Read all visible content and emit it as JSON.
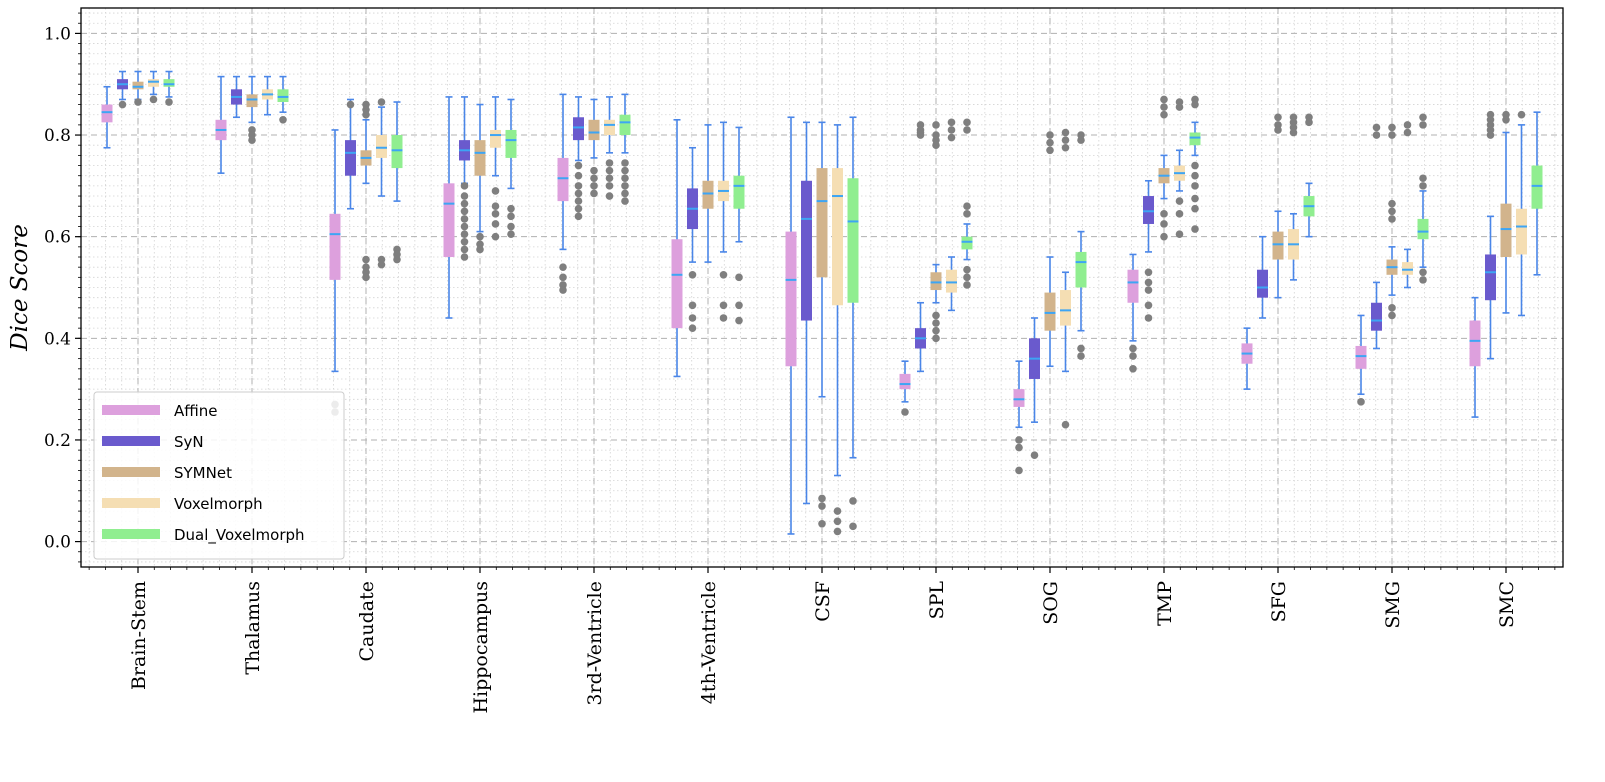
{
  "chart_data": {
    "type": "box",
    "ylabel": "Dice Score",
    "xlabel": "",
    "ylim": [
      -0.05,
      1.05
    ],
    "yticks": [
      0.0,
      0.2,
      0.4,
      0.6,
      0.8,
      1.0
    ],
    "ytick_labels": [
      "0.0",
      "0.2",
      "0.4",
      "0.6",
      "0.8",
      "1.0"
    ],
    "grid": true,
    "legend_position": "lower-left",
    "categories": [
      "Brain-Stem",
      "Thalamus",
      "Caudate",
      "Hippocampus",
      "3rd-Ventricle",
      "4th-Ventricle",
      "CSF",
      "SPL",
      "SOG",
      "TMP",
      "SFG",
      "SMG",
      "SMC"
    ],
    "whisker_color": "#4a86e8",
    "median_color": "#3da5f4",
    "outlier_color": "#7f7f7f",
    "series": [
      {
        "name": "Affine",
        "color": "#dda0dd",
        "boxes": [
          {
            "q1": 0.825,
            "median": 0.845,
            "q3": 0.86,
            "wlo": 0.775,
            "whi": 0.895,
            "outliers": []
          },
          {
            "q1": 0.79,
            "median": 0.81,
            "q3": 0.83,
            "wlo": 0.725,
            "whi": 0.915,
            "outliers": []
          },
          {
            "q1": 0.515,
            "median": 0.605,
            "q3": 0.645,
            "wlo": 0.335,
            "whi": 0.81,
            "outliers": [
              0.27,
              0.255
            ]
          },
          {
            "q1": 0.56,
            "median": 0.665,
            "q3": 0.705,
            "wlo": 0.44,
            "whi": 0.875,
            "outliers": []
          },
          {
            "q1": 0.67,
            "median": 0.715,
            "q3": 0.755,
            "wlo": 0.575,
            "whi": 0.88,
            "outliers": [
              0.54,
              0.52,
              0.505,
              0.495
            ]
          },
          {
            "q1": 0.42,
            "median": 0.525,
            "q3": 0.595,
            "wlo": 0.325,
            "whi": 0.83,
            "outliers": []
          },
          {
            "q1": 0.345,
            "median": 0.515,
            "q3": 0.61,
            "wlo": 0.015,
            "whi": 0.835,
            "outliers": []
          },
          {
            "q1": 0.3,
            "median": 0.31,
            "q3": 0.33,
            "wlo": 0.275,
            "whi": 0.355,
            "outliers": [
              0.255
            ]
          },
          {
            "q1": 0.265,
            "median": 0.28,
            "q3": 0.3,
            "wlo": 0.225,
            "whi": 0.355,
            "outliers": [
              0.2,
              0.185,
              0.14
            ]
          },
          {
            "q1": 0.47,
            "median": 0.51,
            "q3": 0.535,
            "wlo": 0.395,
            "whi": 0.565,
            "outliers": [
              0.38,
              0.365,
              0.34
            ]
          },
          {
            "q1": 0.35,
            "median": 0.37,
            "q3": 0.39,
            "wlo": 0.3,
            "whi": 0.42,
            "outliers": []
          },
          {
            "q1": 0.34,
            "median": 0.365,
            "q3": 0.385,
            "wlo": 0.29,
            "whi": 0.445,
            "outliers": [
              0.275
            ]
          },
          {
            "q1": 0.345,
            "median": 0.395,
            "q3": 0.435,
            "wlo": 0.245,
            "whi": 0.48,
            "outliers": []
          }
        ]
      },
      {
        "name": "SyN",
        "color": "#6a5acd",
        "boxes": [
          {
            "q1": 0.89,
            "median": 0.9,
            "q3": 0.91,
            "wlo": 0.87,
            "whi": 0.925,
            "outliers": [
              0.86
            ]
          },
          {
            "q1": 0.86,
            "median": 0.875,
            "q3": 0.89,
            "wlo": 0.835,
            "whi": 0.915,
            "outliers": []
          },
          {
            "q1": 0.72,
            "median": 0.765,
            "q3": 0.79,
            "wlo": 0.655,
            "whi": 0.87,
            "outliers": [
              0.86
            ]
          },
          {
            "q1": 0.75,
            "median": 0.77,
            "q3": 0.79,
            "wlo": 0.705,
            "whi": 0.875,
            "outliers": [
              0.7,
              0.68,
              0.665,
              0.65,
              0.635,
              0.62,
              0.605,
              0.59,
              0.575,
              0.56
            ]
          },
          {
            "q1": 0.79,
            "median": 0.815,
            "q3": 0.835,
            "wlo": 0.75,
            "whi": 0.875,
            "outliers": [
              0.74,
              0.72,
              0.7,
              0.685,
              0.67,
              0.655,
              0.64
            ]
          },
          {
            "q1": 0.615,
            "median": 0.655,
            "q3": 0.695,
            "wlo": 0.55,
            "whi": 0.775,
            "outliers": [
              0.525,
              0.465,
              0.44,
              0.42
            ]
          },
          {
            "q1": 0.435,
            "median": 0.635,
            "q3": 0.71,
            "wlo": 0.075,
            "whi": 0.825,
            "outliers": []
          },
          {
            "q1": 0.38,
            "median": 0.4,
            "q3": 0.42,
            "wlo": 0.335,
            "whi": 0.47,
            "outliers": [
              0.82,
              0.81,
              0.805,
              0.8
            ]
          },
          {
            "q1": 0.32,
            "median": 0.36,
            "q3": 0.4,
            "wlo": 0.235,
            "whi": 0.44,
            "outliers": [
              0.17
            ]
          },
          {
            "q1": 0.625,
            "median": 0.65,
            "q3": 0.68,
            "wlo": 0.57,
            "whi": 0.71,
            "outliers": [
              0.53,
              0.51,
              0.495,
              0.465,
              0.44
            ]
          },
          {
            "q1": 0.48,
            "median": 0.5,
            "q3": 0.535,
            "wlo": 0.44,
            "whi": 0.6,
            "outliers": []
          },
          {
            "q1": 0.415,
            "median": 0.435,
            "q3": 0.47,
            "wlo": 0.38,
            "whi": 0.51,
            "outliers": [
              0.815,
              0.8
            ]
          },
          {
            "q1": 0.475,
            "median": 0.53,
            "q3": 0.565,
            "wlo": 0.36,
            "whi": 0.64,
            "outliers": [
              0.84,
              0.83,
              0.82,
              0.81,
              0.8
            ]
          }
        ]
      },
      {
        "name": "SYMNet",
        "color": "#d2b48c",
        "boxes": [
          {
            "q1": 0.89,
            "median": 0.895,
            "q3": 0.905,
            "wlo": 0.87,
            "whi": 0.925,
            "outliers": [
              0.865
            ]
          },
          {
            "q1": 0.855,
            "median": 0.87,
            "q3": 0.88,
            "wlo": 0.825,
            "whi": 0.915,
            "outliers": [
              0.81,
              0.8,
              0.79
            ]
          },
          {
            "q1": 0.74,
            "median": 0.755,
            "q3": 0.77,
            "wlo": 0.705,
            "whi": 0.83,
            "outliers": [
              0.86,
              0.85,
              0.84,
              0.555,
              0.54,
              0.53,
              0.52
            ]
          },
          {
            "q1": 0.72,
            "median": 0.765,
            "q3": 0.79,
            "wlo": 0.61,
            "whi": 0.86,
            "outliers": [
              0.6,
              0.585,
              0.575
            ]
          },
          {
            "q1": 0.79,
            "median": 0.805,
            "q3": 0.83,
            "wlo": 0.755,
            "whi": 0.87,
            "outliers": [
              0.73,
              0.715,
              0.7,
              0.685
            ]
          },
          {
            "q1": 0.655,
            "median": 0.685,
            "q3": 0.71,
            "wlo": 0.55,
            "whi": 0.82,
            "outliers": []
          },
          {
            "q1": 0.52,
            "median": 0.67,
            "q3": 0.735,
            "wlo": 0.285,
            "whi": 0.825,
            "outliers": [
              0.085,
              0.07,
              0.035
            ]
          },
          {
            "q1": 0.495,
            "median": 0.51,
            "q3": 0.53,
            "wlo": 0.47,
            "whi": 0.545,
            "outliers": [
              0.82,
              0.8,
              0.79,
              0.78,
              0.445,
              0.43,
              0.415,
              0.4
            ]
          },
          {
            "q1": 0.415,
            "median": 0.45,
            "q3": 0.49,
            "wlo": 0.345,
            "whi": 0.56,
            "outliers": [
              0.8,
              0.785,
              0.77
            ]
          },
          {
            "q1": 0.705,
            "median": 0.72,
            "q3": 0.735,
            "wlo": 0.675,
            "whi": 0.76,
            "outliers": [
              0.87,
              0.855,
              0.84,
              0.645,
              0.625,
              0.6
            ]
          },
          {
            "q1": 0.555,
            "median": 0.585,
            "q3": 0.61,
            "wlo": 0.48,
            "whi": 0.65,
            "outliers": [
              0.835,
              0.82,
              0.81
            ]
          },
          {
            "q1": 0.525,
            "median": 0.54,
            "q3": 0.555,
            "wlo": 0.485,
            "whi": 0.58,
            "outliers": [
              0.815,
              0.8,
              0.665,
              0.65,
              0.635,
              0.46,
              0.445
            ]
          },
          {
            "q1": 0.56,
            "median": 0.615,
            "q3": 0.665,
            "wlo": 0.45,
            "whi": 0.805,
            "outliers": [
              0.84,
              0.83
            ]
          }
        ]
      },
      {
        "name": "Voxelmorph",
        "color": "#f5deb3",
        "boxes": [
          {
            "q1": 0.895,
            "median": 0.905,
            "q3": 0.91,
            "wlo": 0.88,
            "whi": 0.925,
            "outliers": [
              0.87
            ]
          },
          {
            "q1": 0.87,
            "median": 0.88,
            "q3": 0.89,
            "wlo": 0.84,
            "whi": 0.915,
            "outliers": []
          },
          {
            "q1": 0.755,
            "median": 0.775,
            "q3": 0.8,
            "wlo": 0.68,
            "whi": 0.855,
            "outliers": [
              0.865,
              0.555,
              0.545
            ]
          },
          {
            "q1": 0.775,
            "median": 0.8,
            "q3": 0.81,
            "wlo": 0.72,
            "whi": 0.875,
            "outliers": [
              0.69,
              0.66,
              0.645,
              0.625,
              0.6
            ]
          },
          {
            "q1": 0.8,
            "median": 0.82,
            "q3": 0.83,
            "wlo": 0.765,
            "whi": 0.875,
            "outliers": [
              0.745,
              0.73,
              0.715,
              0.7,
              0.68
            ]
          },
          {
            "q1": 0.67,
            "median": 0.69,
            "q3": 0.71,
            "wlo": 0.57,
            "whi": 0.825,
            "outliers": [
              0.525,
              0.465,
              0.44
            ]
          },
          {
            "q1": 0.465,
            "median": 0.68,
            "q3": 0.735,
            "wlo": 0.13,
            "whi": 0.82,
            "outliers": [
              0.06,
              0.04,
              0.02
            ]
          },
          {
            "q1": 0.49,
            "median": 0.51,
            "q3": 0.535,
            "wlo": 0.455,
            "whi": 0.56,
            "outliers": [
              0.825,
              0.81,
              0.795
            ]
          },
          {
            "q1": 0.425,
            "median": 0.455,
            "q3": 0.495,
            "wlo": 0.335,
            "whi": 0.53,
            "outliers": [
              0.805,
              0.79,
              0.775,
              0.23
            ]
          },
          {
            "q1": 0.71,
            "median": 0.725,
            "q3": 0.74,
            "wlo": 0.69,
            "whi": 0.77,
            "outliers": [
              0.865,
              0.855,
              0.67,
              0.645,
              0.605
            ]
          },
          {
            "q1": 0.555,
            "median": 0.585,
            "q3": 0.615,
            "wlo": 0.515,
            "whi": 0.645,
            "outliers": [
              0.835,
              0.825,
              0.815,
              0.805
            ]
          },
          {
            "q1": 0.525,
            "median": 0.535,
            "q3": 0.55,
            "wlo": 0.5,
            "whi": 0.575,
            "outliers": [
              0.82,
              0.805
            ]
          },
          {
            "q1": 0.565,
            "median": 0.62,
            "q3": 0.655,
            "wlo": 0.445,
            "whi": 0.82,
            "outliers": [
              0.84
            ]
          }
        ]
      },
      {
        "name": "Dual_Voxelmorph",
        "color": "#90ee90",
        "boxes": [
          {
            "q1": 0.895,
            "median": 0.9,
            "q3": 0.91,
            "wlo": 0.875,
            "whi": 0.925,
            "outliers": [
              0.865
            ]
          },
          {
            "q1": 0.865,
            "median": 0.875,
            "q3": 0.89,
            "wlo": 0.845,
            "whi": 0.915,
            "outliers": [
              0.83
            ]
          },
          {
            "q1": 0.735,
            "median": 0.77,
            "q3": 0.8,
            "wlo": 0.67,
            "whi": 0.865,
            "outliers": [
              0.575,
              0.565,
              0.555
            ]
          },
          {
            "q1": 0.755,
            "median": 0.79,
            "q3": 0.81,
            "wlo": 0.695,
            "whi": 0.87,
            "outliers": [
              0.655,
              0.64,
              0.62,
              0.605
            ]
          },
          {
            "q1": 0.8,
            "median": 0.825,
            "q3": 0.84,
            "wlo": 0.765,
            "whi": 0.88,
            "outliers": [
              0.745,
              0.73,
              0.715,
              0.7,
              0.685,
              0.67
            ]
          },
          {
            "q1": 0.655,
            "median": 0.7,
            "q3": 0.72,
            "wlo": 0.59,
            "whi": 0.815,
            "outliers": [
              0.52,
              0.465,
              0.435
            ]
          },
          {
            "q1": 0.47,
            "median": 0.63,
            "q3": 0.715,
            "wlo": 0.165,
            "whi": 0.835,
            "outliers": [
              0.08,
              0.03
            ]
          },
          {
            "q1": 0.575,
            "median": 0.59,
            "q3": 0.6,
            "wlo": 0.555,
            "whi": 0.625,
            "outliers": [
              0.825,
              0.81,
              0.66,
              0.645,
              0.535,
              0.52,
              0.505
            ]
          },
          {
            "q1": 0.5,
            "median": 0.55,
            "q3": 0.57,
            "wlo": 0.415,
            "whi": 0.61,
            "outliers": [
              0.8,
              0.79,
              0.38,
              0.365
            ]
          },
          {
            "q1": 0.78,
            "median": 0.795,
            "q3": 0.805,
            "wlo": 0.76,
            "whi": 0.825,
            "outliers": [
              0.87,
              0.86,
              0.74,
              0.72,
              0.7,
              0.675,
              0.655,
              0.615
            ]
          },
          {
            "q1": 0.64,
            "median": 0.66,
            "q3": 0.68,
            "wlo": 0.6,
            "whi": 0.705,
            "outliers": [
              0.835,
              0.825
            ]
          },
          {
            "q1": 0.595,
            "median": 0.61,
            "q3": 0.635,
            "wlo": 0.54,
            "whi": 0.69,
            "outliers": [
              0.835,
              0.82,
              0.715,
              0.7,
              0.53,
              0.515
            ]
          },
          {
            "q1": 0.655,
            "median": 0.7,
            "q3": 0.74,
            "wlo": 0.525,
            "whi": 0.845,
            "outliers": []
          }
        ]
      }
    ]
  }
}
